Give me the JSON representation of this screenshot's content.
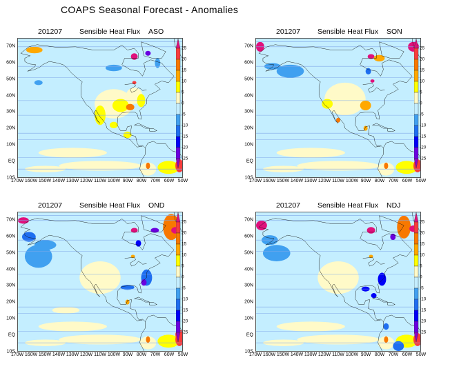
{
  "title": "COAPS Seasonal Forecast - Anomalies",
  "panels": [
    {
      "date": "201207",
      "variable": "Sensible Heat Flux",
      "season": "ASO"
    },
    {
      "date": "201207",
      "variable": "Sensible Heat Flux",
      "season": "SON"
    },
    {
      "date": "201207",
      "variable": "Sensible Heat Flux",
      "season": "OND"
    },
    {
      "date": "201207",
      "variable": "Sensible Heat Flux",
      "season": "NDJ"
    }
  ],
  "axes": {
    "lat_labels": [
      "70N",
      "60N",
      "50N",
      "40N",
      "30N",
      "20N",
      "10N",
      "EQ",
      "10S"
    ],
    "lat_values": [
      70,
      60,
      50,
      40,
      30,
      20,
      10,
      0,
      -10
    ],
    "lon_labels": [
      "170W",
      "160W",
      "150W",
      "140W",
      "130W",
      "120W",
      "110W",
      "100W",
      "90W",
      "80W",
      "70W",
      "60W",
      "50W"
    ],
    "lon_values": [
      -170,
      -160,
      -150,
      -140,
      -130,
      -120,
      -110,
      -100,
      -90,
      -80,
      -70,
      -60,
      -50
    ],
    "lon_range": [
      -170,
      -50
    ],
    "lat_range": [
      -10,
      75
    ]
  },
  "colorbar": {
    "labels": [
      "25",
      "20",
      "15",
      "10",
      "5",
      "0",
      "-5",
      "-10",
      "-15",
      "-20",
      "-25"
    ],
    "levels": [
      25,
      20,
      15,
      10,
      5,
      0,
      -5,
      -10,
      -15,
      -20,
      -25
    ],
    "colors": [
      "#e0107c",
      "#f83c3c",
      "#f87800",
      "#ffa800",
      "#ffff00",
      "#fffac8",
      "#c4eeff",
      "#40a0f0",
      "#1e6ef0",
      "#0000f8",
      "#6a00e0",
      "#9000c8"
    ]
  },
  "chart_data": {
    "type": "heatmap",
    "title": "COAPS Seasonal Forecast - Anomalies",
    "variable": "Sensible Heat Flux",
    "initialization": "201207",
    "seasons": [
      "ASO",
      "SON",
      "OND",
      "NDJ"
    ],
    "xlim": [
      -170,
      -50
    ],
    "ylim": [
      -10,
      75
    ],
    "contour_levels": [
      -25,
      -20,
      -15,
      -10,
      -5,
      0,
      5,
      10,
      15,
      20,
      25
    ]
  }
}
